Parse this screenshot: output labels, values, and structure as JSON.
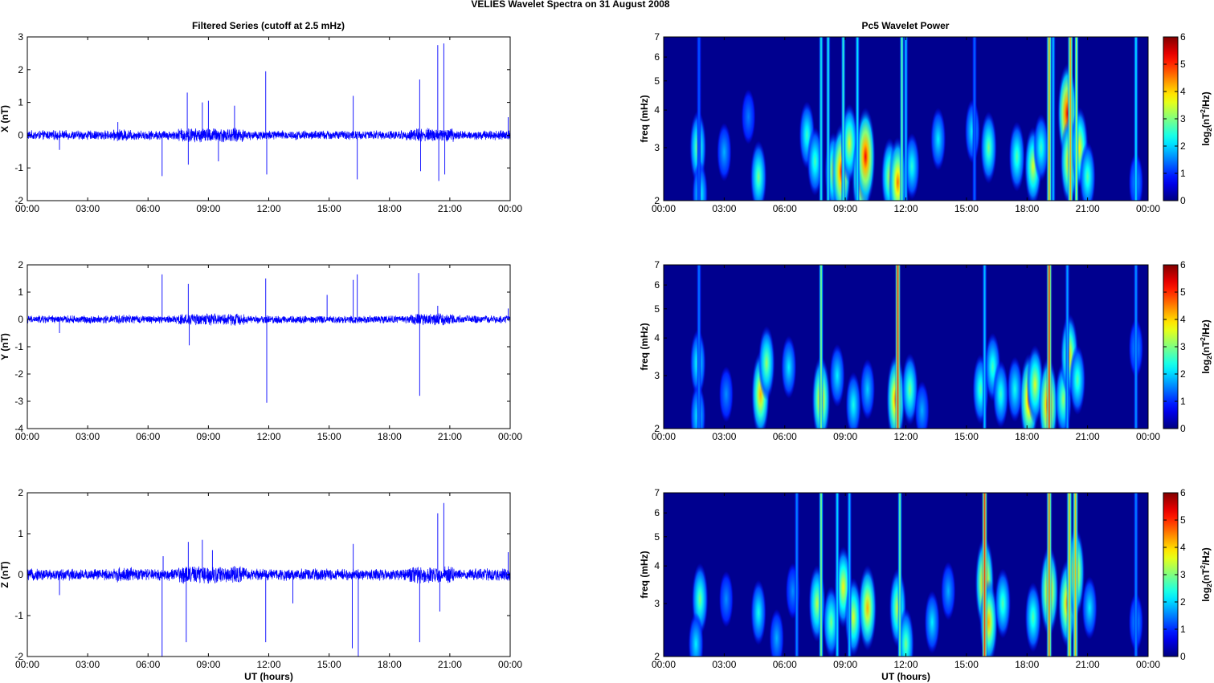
{
  "figure": {
    "title": "VELIES Wavelet Spectra on 31 August    2008",
    "left_title": "Filtered Series (cutoff at 2.5 mHz)",
    "right_title": "Pc5 Wavelet Power",
    "x_label": "UT (hours)",
    "freq_label": "freq (mHz)",
    "colorbar_label": "log2(nT2/Hz)",
    "time_ticks": [
      "00:00",
      "03:00",
      "06:00",
      "09:00",
      "12:00",
      "15:00",
      "18:00",
      "21:00",
      "00:00"
    ]
  },
  "colors": {
    "trace": "#0000ff",
    "spectrum_background": "#00008f"
  },
  "chart_data": [
    {
      "type": "line",
      "component": "X",
      "ylabel": "X (nT)",
      "xlim": [
        0,
        24
      ],
      "ylim": [
        -2,
        3
      ],
      "yticks": [
        -2,
        -1,
        0,
        1,
        2,
        3
      ],
      "noise_amplitude_nT": 0.12,
      "spikes": [
        {
          "t": 1.6,
          "v": -0.45
        },
        {
          "t": 4.5,
          "v": 0.4
        },
        {
          "t": 6.7,
          "v": -1.25
        },
        {
          "t": 7.95,
          "v": 1.3
        },
        {
          "t": 8.0,
          "v": -0.9
        },
        {
          "t": 8.7,
          "v": 1.0
        },
        {
          "t": 9.0,
          "v": 1.05
        },
        {
          "t": 9.5,
          "v": -0.8
        },
        {
          "t": 10.3,
          "v": 0.9
        },
        {
          "t": 11.85,
          "v": 1.95
        },
        {
          "t": 11.9,
          "v": -1.2
        },
        {
          "t": 16.2,
          "v": 1.2
        },
        {
          "t": 16.4,
          "v": -1.35
        },
        {
          "t": 19.5,
          "v": 1.7
        },
        {
          "t": 19.55,
          "v": -1.1
        },
        {
          "t": 20.4,
          "v": 2.75
        },
        {
          "t": 20.45,
          "v": -1.4
        },
        {
          "t": 20.7,
          "v": 2.8
        },
        {
          "t": 20.75,
          "v": -1.2
        },
        {
          "t": 23.9,
          "v": 0.55
        }
      ]
    },
    {
      "type": "line",
      "component": "Y",
      "ylabel": "Y (nT)",
      "xlim": [
        0,
        24
      ],
      "ylim": [
        -4,
        2
      ],
      "yticks": [
        -4,
        -3,
        -2,
        -1,
        0,
        1,
        2
      ],
      "noise_amplitude_nT": 0.12,
      "spikes": [
        {
          "t": 1.6,
          "v": -0.5
        },
        {
          "t": 6.7,
          "v": 1.65
        },
        {
          "t": 8.0,
          "v": 1.3
        },
        {
          "t": 8.05,
          "v": -0.95
        },
        {
          "t": 11.85,
          "v": 1.5
        },
        {
          "t": 11.9,
          "v": -3.05
        },
        {
          "t": 14.9,
          "v": 0.9
        },
        {
          "t": 16.2,
          "v": 1.45
        },
        {
          "t": 16.4,
          "v": 1.65
        },
        {
          "t": 19.45,
          "v": 1.7
        },
        {
          "t": 19.5,
          "v": -2.8
        },
        {
          "t": 20.4,
          "v": 0.5
        },
        {
          "t": 23.9,
          "v": 0.4
        }
      ]
    },
    {
      "type": "line",
      "component": "Z",
      "ylabel": "Z (nT)",
      "xlim": [
        0,
        24
      ],
      "ylim": [
        -2,
        2
      ],
      "yticks": [
        -2,
        -1,
        0,
        1,
        2
      ],
      "noise_amplitude_nT": 0.12,
      "spikes": [
        {
          "t": 1.6,
          "v": -0.5
        },
        {
          "t": 6.7,
          "v": -2.0
        },
        {
          "t": 6.75,
          "v": 0.45
        },
        {
          "t": 7.9,
          "v": -1.65
        },
        {
          "t": 8.0,
          "v": 0.8
        },
        {
          "t": 8.7,
          "v": 0.85
        },
        {
          "t": 9.2,
          "v": 0.6
        },
        {
          "t": 11.85,
          "v": -1.65
        },
        {
          "t": 13.2,
          "v": -0.7
        },
        {
          "t": 16.15,
          "v": -1.8
        },
        {
          "t": 16.2,
          "v": 0.75
        },
        {
          "t": 16.45,
          "v": -2.0
        },
        {
          "t": 19.5,
          "v": -1.65
        },
        {
          "t": 20.4,
          "v": 1.5
        },
        {
          "t": 20.5,
          "v": -0.9
        },
        {
          "t": 20.7,
          "v": 1.75
        },
        {
          "t": 23.9,
          "v": 0.55
        }
      ]
    },
    {
      "type": "heatmap",
      "component": "X",
      "title": "Pc5 Wavelet Power",
      "ylabel": "freq (mHz)",
      "y_scale": "log",
      "xlim": [
        0,
        24
      ],
      "ylim": [
        2,
        7
      ],
      "yticks": [
        2,
        3,
        4,
        5,
        6,
        7
      ],
      "colorbar": {
        "range": [
          0,
          6
        ],
        "ticks": [
          0,
          1,
          2,
          3,
          4,
          5,
          6
        ],
        "colormap": "jet"
      },
      "blobs": [
        {
          "t": 1.7,
          "f": 3.0,
          "p": 3.2
        },
        {
          "t": 1.8,
          "f": 2.1,
          "p": 2.5
        },
        {
          "t": 3.0,
          "f": 2.9,
          "p": 1.8
        },
        {
          "t": 4.7,
          "f": 2.4,
          "p": 3.0
        },
        {
          "t": 4.2,
          "f": 3.8,
          "p": 1.5
        },
        {
          "t": 7.1,
          "f": 3.3,
          "p": 2.6
        },
        {
          "t": 7.5,
          "f": 2.7,
          "p": 2.7
        },
        {
          "t": 8.4,
          "f": 2.5,
          "p": 3.5
        },
        {
          "t": 8.8,
          "f": 2.5,
          "p": 5.0
        },
        {
          "t": 9.2,
          "f": 3.1,
          "p": 3.6
        },
        {
          "t": 9.8,
          "f": 2.4,
          "p": 4.8
        },
        {
          "t": 10.0,
          "f": 2.8,
          "p": 5.3
        },
        {
          "t": 11.2,
          "f": 2.4,
          "p": 3.5
        },
        {
          "t": 11.6,
          "f": 2.3,
          "p": 4.6
        },
        {
          "t": 12.3,
          "f": 2.6,
          "p": 2.5
        },
        {
          "t": 13.6,
          "f": 3.2,
          "p": 2.2
        },
        {
          "t": 15.3,
          "f": 3.4,
          "p": 2.3
        },
        {
          "t": 16.1,
          "f": 3.0,
          "p": 3.0
        },
        {
          "t": 17.5,
          "f": 2.8,
          "p": 2.8
        },
        {
          "t": 18.3,
          "f": 2.6,
          "p": 3.6
        },
        {
          "t": 18.7,
          "f": 3.0,
          "p": 2.6
        },
        {
          "t": 20.0,
          "f": 3.9,
          "p": 5.4
        },
        {
          "t": 20.1,
          "f": 2.7,
          "p": 4.3
        },
        {
          "t": 20.6,
          "f": 3.0,
          "p": 3.8
        },
        {
          "t": 21.0,
          "f": 2.4,
          "p": 2.8
        },
        {
          "t": 23.4,
          "f": 2.3,
          "p": 1.8
        }
      ],
      "streaks": [
        {
          "t": 1.75,
          "p": 1.3
        },
        {
          "t": 7.8,
          "p": 2.4
        },
        {
          "t": 8.15,
          "p": 2.4
        },
        {
          "t": 8.9,
          "p": 2.6
        },
        {
          "t": 9.6,
          "p": 2.3
        },
        {
          "t": 11.8,
          "p": 3.0
        },
        {
          "t": 12.0,
          "p": 2.0
        },
        {
          "t": 15.4,
          "p": 1.4
        },
        {
          "t": 19.1,
          "p": 4.3
        },
        {
          "t": 19.3,
          "p": 2.0
        },
        {
          "t": 20.15,
          "p": 4.3
        },
        {
          "t": 20.45,
          "p": 3.5
        },
        {
          "t": 23.4,
          "p": 2.2
        }
      ]
    },
    {
      "type": "heatmap",
      "component": "Y",
      "ylabel": "freq (mHz)",
      "y_scale": "log",
      "xlim": [
        0,
        24
      ],
      "ylim": [
        2,
        7
      ],
      "yticks": [
        2,
        3,
        4,
        5,
        6,
        7
      ],
      "colorbar": {
        "range": [
          0,
          6
        ],
        "ticks": [
          0,
          1,
          2,
          3,
          4,
          5,
          6
        ],
        "colormap": "jet"
      },
      "blobs": [
        {
          "t": 1.7,
          "f": 3.3,
          "p": 2.6
        },
        {
          "t": 1.7,
          "f": 2.2,
          "p": 2.4
        },
        {
          "t": 3.1,
          "f": 2.6,
          "p": 1.6
        },
        {
          "t": 4.8,
          "f": 2.6,
          "p": 4.2
        },
        {
          "t": 5.1,
          "f": 3.3,
          "p": 3.2
        },
        {
          "t": 6.2,
          "f": 3.2,
          "p": 2.2
        },
        {
          "t": 7.8,
          "f": 2.5,
          "p": 4.3
        },
        {
          "t": 8.6,
          "f": 3.0,
          "p": 2.2
        },
        {
          "t": 9.4,
          "f": 2.4,
          "p": 2.4
        },
        {
          "t": 10.1,
          "f": 2.7,
          "p": 2.0
        },
        {
          "t": 11.5,
          "f": 2.5,
          "p": 4.6
        },
        {
          "t": 12.2,
          "f": 2.7,
          "p": 3.0
        },
        {
          "t": 12.8,
          "f": 2.3,
          "p": 1.8
        },
        {
          "t": 15.7,
          "f": 2.7,
          "p": 2.8
        },
        {
          "t": 16.3,
          "f": 3.2,
          "p": 2.7
        },
        {
          "t": 16.7,
          "f": 2.6,
          "p": 2.6
        },
        {
          "t": 17.4,
          "f": 2.7,
          "p": 2.4
        },
        {
          "t": 18.1,
          "f": 2.5,
          "p": 4.7
        },
        {
          "t": 18.4,
          "f": 2.8,
          "p": 3.6
        },
        {
          "t": 19.05,
          "f": 2.4,
          "p": 5.0
        },
        {
          "t": 19.8,
          "f": 2.5,
          "p": 3.2
        },
        {
          "t": 20.1,
          "f": 3.5,
          "p": 4.0
        },
        {
          "t": 20.5,
          "f": 2.9,
          "p": 2.8
        },
        {
          "t": 23.4,
          "f": 3.7,
          "p": 1.8
        }
      ],
      "streaks": [
        {
          "t": 1.75,
          "p": 1.5
        },
        {
          "t": 7.8,
          "p": 3.2
        },
        {
          "t": 11.6,
          "p": 5.0
        },
        {
          "t": 15.9,
          "p": 2.0
        },
        {
          "t": 19.1,
          "p": 5.0
        },
        {
          "t": 20.0,
          "p": 1.8
        },
        {
          "t": 23.4,
          "p": 1.7
        }
      ]
    },
    {
      "type": "heatmap",
      "component": "Z",
      "ylabel": "freq (mHz)",
      "y_scale": "log",
      "xlim": [
        0,
        24
      ],
      "ylim": [
        2,
        7
      ],
      "yticks": [
        2,
        3,
        4,
        5,
        6,
        7
      ],
      "colorbar": {
        "range": [
          0,
          6
        ],
        "ticks": [
          0,
          1,
          2,
          3,
          4,
          5,
          6
        ],
        "colormap": "jet"
      },
      "blobs": [
        {
          "t": 1.8,
          "f": 3.1,
          "p": 3.0
        },
        {
          "t": 1.6,
          "f": 2.2,
          "p": 2.2
        },
        {
          "t": 3.1,
          "f": 3.1,
          "p": 1.6
        },
        {
          "t": 4.7,
          "f": 2.8,
          "p": 2.4
        },
        {
          "t": 5.6,
          "f": 2.3,
          "p": 1.8
        },
        {
          "t": 6.4,
          "f": 3.3,
          "p": 1.6
        },
        {
          "t": 7.6,
          "f": 3.0,
          "p": 3.4
        },
        {
          "t": 8.3,
          "f": 2.6,
          "p": 3.0
        },
        {
          "t": 8.9,
          "f": 3.4,
          "p": 3.8
        },
        {
          "t": 9.4,
          "f": 2.7,
          "p": 3.6
        },
        {
          "t": 10.1,
          "f": 2.9,
          "p": 4.2
        },
        {
          "t": 11.6,
          "f": 2.9,
          "p": 3.6
        },
        {
          "t": 12.0,
          "f": 2.2,
          "p": 3.0
        },
        {
          "t": 13.3,
          "f": 2.6,
          "p": 2.2
        },
        {
          "t": 14.1,
          "f": 3.3,
          "p": 1.8
        },
        {
          "t": 15.9,
          "f": 3.5,
          "p": 4.9
        },
        {
          "t": 16.1,
          "f": 2.6,
          "p": 4.2
        },
        {
          "t": 16.8,
          "f": 3.0,
          "p": 2.8
        },
        {
          "t": 18.3,
          "f": 2.7,
          "p": 2.8
        },
        {
          "t": 19.1,
          "f": 3.3,
          "p": 4.6
        },
        {
          "t": 20.0,
          "f": 3.0,
          "p": 4.4
        },
        {
          "t": 20.4,
          "f": 3.8,
          "p": 4.6
        },
        {
          "t": 21.1,
          "f": 2.9,
          "p": 2.2
        },
        {
          "t": 23.4,
          "f": 2.6,
          "p": 1.8
        }
      ],
      "streaks": [
        {
          "t": 6.6,
          "p": 1.6
        },
        {
          "t": 7.8,
          "p": 3.2
        },
        {
          "t": 8.6,
          "p": 2.2
        },
        {
          "t": 9.2,
          "p": 2.0
        },
        {
          "t": 11.7,
          "p": 3.0
        },
        {
          "t": 15.9,
          "p": 5.0
        },
        {
          "t": 19.1,
          "p": 4.6
        },
        {
          "t": 20.1,
          "p": 4.2
        },
        {
          "t": 20.4,
          "p": 4.2
        },
        {
          "t": 23.4,
          "p": 1.6
        }
      ]
    }
  ]
}
